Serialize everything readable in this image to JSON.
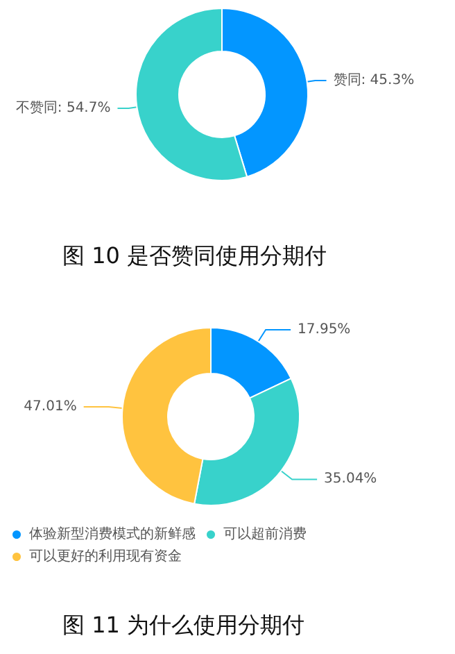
{
  "chart_data": [
    {
      "type": "donut",
      "title": "图 10 是否赞同使用分期付",
      "categories": [
        "赞同",
        "不赞同"
      ],
      "values": [
        45.3,
        54.7
      ],
      "colors": [
        "#0396ff",
        "#38d2cb"
      ],
      "value_labels": [
        "45.3%",
        "54.7%"
      ],
      "legend": false
    },
    {
      "type": "donut",
      "title": "图 11 为什么使用分期付",
      "categories": [
        "体验新型消费模式的新鲜感",
        "可以超前消费",
        "可以更好的利用现有资金"
      ],
      "values": [
        17.95,
        35.04,
        47.01
      ],
      "colors": [
        "#0396ff",
        "#38d2cb",
        "#ffc33f"
      ],
      "value_labels": [
        "17.95%",
        "35.04%",
        "47.01%"
      ],
      "legend": "bottom"
    }
  ]
}
